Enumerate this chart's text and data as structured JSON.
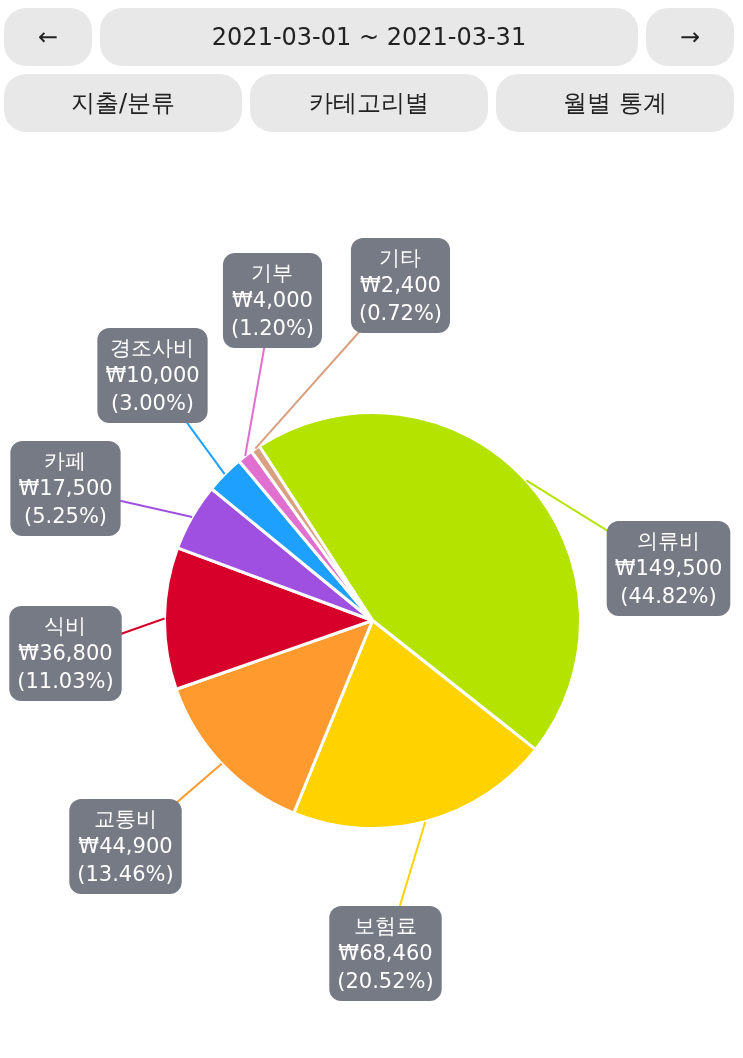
{
  "chart_data": {
    "type": "pie",
    "title": "2021-03-01 ~ 2021-03-31",
    "annotations": [
      "←",
      "→",
      "지출/분류",
      "카테고리별",
      "월별 통계"
    ],
    "categories": [
      "의류비",
      "보험료",
      "교통비",
      "식비",
      "카페",
      "경조사비",
      "기부",
      "기타"
    ],
    "values": [
      149500,
      68460,
      44900,
      36800,
      17500,
      10000,
      4000,
      2400
    ],
    "value_labels": [
      "₩149,500\n(44.82%)",
      "₩68,460\n(20.52%)",
      "₩44,900\n(13.46%)",
      "₩36,800\n(11.03%)",
      "₩17,500\n(5.25%)",
      "₩10,000\n(3.00%)",
      "₩4,000\n(1.20%)",
      "₩2,400\n(0.72%)"
    ],
    "colors": [
      "#b5e300",
      "#ffd200",
      "#ff9a2e",
      "#d6002a",
      "#a050e0",
      "#1ea0ff",
      "#e070d0",
      "#d8a080"
    ]
  }
}
